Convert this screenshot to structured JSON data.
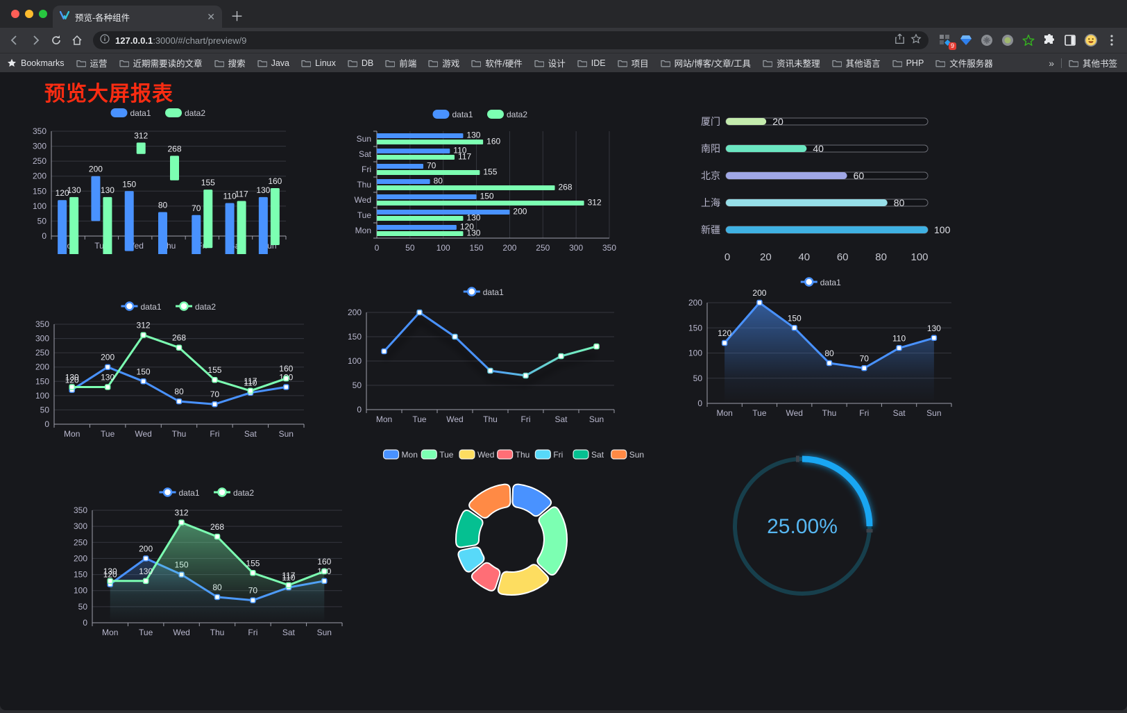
{
  "browser": {
    "window_controls": [
      "close",
      "minimize",
      "zoom"
    ],
    "traffic_colors": [
      "#ff5f57",
      "#febc2e",
      "#28c840"
    ],
    "tab": {
      "title": "预览-各种组件"
    },
    "toolbar": {
      "url_host": "127.0.0.1",
      "url_rest": ":3000/#/chart/preview/9"
    },
    "extensions_badge": "9",
    "icons": [
      "back-icon",
      "forward-icon",
      "reload-icon",
      "home-icon",
      "info-icon",
      "share-icon",
      "star-icon",
      "extension-grid-icon",
      "gem-icon",
      "grey-circle-icon",
      "record-circle-icon",
      "green-star-icon",
      "puzzle-icon",
      "reading-list-icon",
      "avatar-emoji-icon",
      "kebab-menu-icon"
    ],
    "bookmarks": {
      "bar_label": "Bookmarks",
      "folders": [
        "运营",
        "近期需要读的文章",
        "搜索",
        "Java",
        "Linux",
        "DB",
        "前端",
        "游戏",
        "软件/硬件",
        "设计",
        "IDE",
        "项目",
        "网站/博客/文章/工具",
        "资讯未整理",
        "其他语言",
        "PHP",
        "文件服务器"
      ],
      "overflow_chevron": "»",
      "other_bookmarks": "其他书签"
    }
  },
  "page": {
    "title": "预览大屏报表",
    "title_color": "#fa2c12"
  },
  "chart_data": [
    {
      "type": "bar",
      "variant": "vertical-grouped",
      "legend_shape": "capsule",
      "categories": [
        "Mon",
        "Tue",
        "Wed",
        "Thu",
        "Fri",
        "Sat",
        "Sun"
      ],
      "series": [
        {
          "name": "data1",
          "color": "#4992ff",
          "values": [
            120,
            200,
            150,
            80,
            70,
            110,
            130
          ]
        },
        {
          "name": "data2",
          "color": "#7cffb2",
          "values": [
            130,
            130,
            312,
            268,
            155,
            117,
            160
          ]
        }
      ],
      "ylim": [
        0,
        350
      ],
      "ystep": 50,
      "show_labels": true,
      "grid": true
    },
    {
      "type": "bar",
      "variant": "horizontal-grouped",
      "legend_shape": "capsule",
      "categories": [
        "Mon",
        "Tue",
        "Wed",
        "Thu",
        "Fri",
        "Sat",
        "Sun"
      ],
      "series": [
        {
          "name": "data1",
          "color": "#4992ff",
          "values": [
            120,
            200,
            150,
            80,
            70,
            110,
            130
          ]
        },
        {
          "name": "data2",
          "color": "#7cffb2",
          "values": [
            130,
            130,
            312,
            268,
            155,
            117,
            160
          ]
        }
      ],
      "xlim": [
        0,
        350
      ],
      "xstep": 50,
      "show_labels": true,
      "grid": true
    },
    {
      "type": "progress-bars",
      "rows": [
        {
          "label": "厦门",
          "value": 20,
          "color": "#c4ebad"
        },
        {
          "label": "南阳",
          "value": 40,
          "color": "#6be6c1"
        },
        {
          "label": "北京",
          "value": 60,
          "color": "#a0a7e6"
        },
        {
          "label": "上海",
          "value": 80,
          "color": "#96dee8"
        },
        {
          "label": "新疆",
          "value": 100,
          "color": "#3fb1e3"
        }
      ],
      "xlim": [
        0,
        100
      ],
      "xticks": [
        0,
        20,
        40,
        60,
        80,
        100
      ]
    },
    {
      "type": "line",
      "variant": "two-series",
      "categories": [
        "Mon",
        "Tue",
        "Wed",
        "Thu",
        "Fri",
        "Sat",
        "Sun"
      ],
      "series": [
        {
          "name": "data1",
          "color": "#4992ff",
          "values": [
            120,
            200,
            150,
            80,
            70,
            110,
            130
          ]
        },
        {
          "name": "data2",
          "color": "#7cffb2",
          "values": [
            130,
            130,
            312,
            268,
            155,
            117,
            160
          ]
        }
      ],
      "ylim": [
        0,
        350
      ],
      "ystep": 50,
      "show_labels": true,
      "grid": true
    },
    {
      "type": "line",
      "variant": "gradient-shadow",
      "categories": [
        "Mon",
        "Tue",
        "Wed",
        "Thu",
        "Fri",
        "Sat",
        "Sun"
      ],
      "series": [
        {
          "name": "data1",
          "gradient": [
            "#4992ff",
            "#7cffb2"
          ],
          "values": [
            120,
            200,
            150,
            80,
            70,
            110,
            130
          ]
        }
      ],
      "ylim": [
        0,
        200
      ],
      "ystep": 50,
      "show_labels": false,
      "grid": true
    },
    {
      "type": "line",
      "variant": "area",
      "categories": [
        "Mon",
        "Tue",
        "Wed",
        "Thu",
        "Fri",
        "Sat",
        "Sun"
      ],
      "series": [
        {
          "name": "data1",
          "color": "#4992ff",
          "values": [
            120,
            200,
            150,
            80,
            70,
            110,
            130
          ],
          "area": true
        }
      ],
      "ylim": [
        0,
        200
      ],
      "ystep": 50,
      "show_labels": true,
      "grid": true
    },
    {
      "type": "line",
      "variant": "two-series-area",
      "categories": [
        "Mon",
        "Tue",
        "Wed",
        "Thu",
        "Fri",
        "Sat",
        "Sun"
      ],
      "series": [
        {
          "name": "data1",
          "color": "#4992ff",
          "values": [
            120,
            200,
            150,
            80,
            70,
            110,
            130
          ],
          "area": true
        },
        {
          "name": "data2",
          "color": "#7cffb2",
          "values": [
            130,
            130,
            312,
            268,
            155,
            117,
            160
          ],
          "area": true
        }
      ],
      "ylim": [
        0,
        350
      ],
      "ystep": 50,
      "show_labels": true,
      "grid": true
    },
    {
      "type": "pie",
      "variant": "donut-rounded",
      "legend": [
        "Mon",
        "Tue",
        "Wed",
        "Thu",
        "Fri",
        "Sat",
        "Sun"
      ],
      "values": [
        120,
        200,
        150,
        80,
        70,
        110,
        130
      ],
      "colors": [
        "#4992ff",
        "#7cffb2",
        "#fddd60",
        "#ff6e76",
        "#58d9f9",
        "#05c091",
        "#ff8a45"
      ]
    },
    {
      "type": "gauge",
      "value_percent": 25,
      "display": "25.00%",
      "arc_color": "#19a6f2",
      "track_color": "#173f4c",
      "text_color": "#57b7f2"
    }
  ]
}
